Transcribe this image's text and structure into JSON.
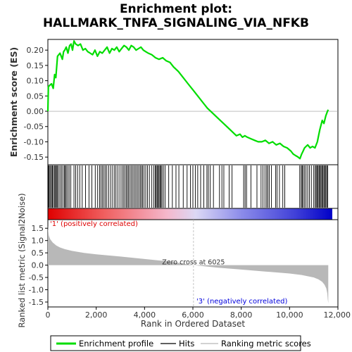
{
  "title_line1": "Enrichment plot:",
  "title_line2": "HALLMARK_TNFA_SIGNALING_VIA_NFKB",
  "colors": {
    "es_line": "#00dd00",
    "hits": "#000000",
    "metric_fill": "#b8b8b8",
    "pos_label": "#dd0000",
    "neg_label": "#0000dd",
    "zero_line": "#b8b8b8"
  },
  "chart_data": [
    {
      "type": "line",
      "name": "enrichment-profile",
      "ylabel": "Enrichment score (ES)",
      "xlim": [
        0,
        12000
      ],
      "ylim": [
        -0.175,
        0.235
      ],
      "yticks": [
        0.2,
        0.15,
        0.1,
        0.05,
        0.0,
        -0.05,
        -0.1,
        -0.15
      ],
      "ytick_labels": [
        "0.20",
        "0.15",
        "0.10",
        "0.05",
        "0.00",
        "-0.05",
        "-0.10",
        "-0.15"
      ],
      "x": [
        0,
        20,
        80,
        150,
        220,
        280,
        330,
        400,
        500,
        600,
        650,
        700,
        760,
        830,
        900,
        960,
        1020,
        1080,
        1150,
        1250,
        1350,
        1450,
        1550,
        1650,
        1750,
        1850,
        1950,
        2050,
        2150,
        2250,
        2350,
        2450,
        2550,
        2650,
        2750,
        2850,
        2950,
        3050,
        3150,
        3250,
        3350,
        3450,
        3550,
        3650,
        3750,
        3850,
        3950,
        4050,
        4150,
        4300,
        4450,
        4600,
        4750,
        4900,
        5050,
        5200,
        5400,
        5600,
        5800,
        6000,
        6200,
        6400,
        6600,
        6800,
        7000,
        7200,
        7400,
        7600,
        7800,
        7950,
        8050,
        8150,
        8250,
        8400,
        8550,
        8700,
        8850,
        9000,
        9150,
        9300,
        9450,
        9600,
        9750,
        9900,
        10050,
        10150,
        10250,
        10350,
        10430,
        10500,
        10560,
        10620,
        10680,
        10750,
        10850,
        10950,
        11050,
        11150,
        11200,
        11250,
        11300,
        11350,
        11420,
        11500,
        11570,
        11600
      ],
      "y": [
        0.0,
        0.08,
        0.085,
        0.09,
        0.075,
        0.12,
        0.11,
        0.18,
        0.19,
        0.17,
        0.195,
        0.2,
        0.21,
        0.19,
        0.215,
        0.22,
        0.2,
        0.23,
        0.22,
        0.215,
        0.22,
        0.2,
        0.205,
        0.195,
        0.19,
        0.185,
        0.2,
        0.18,
        0.195,
        0.19,
        0.2,
        0.21,
        0.19,
        0.205,
        0.2,
        0.21,
        0.195,
        0.205,
        0.215,
        0.21,
        0.2,
        0.215,
        0.21,
        0.2,
        0.205,
        0.21,
        0.2,
        0.195,
        0.19,
        0.185,
        0.175,
        0.17,
        0.175,
        0.165,
        0.16,
        0.145,
        0.13,
        0.11,
        0.09,
        0.07,
        0.05,
        0.03,
        0.01,
        -0.005,
        -0.02,
        -0.035,
        -0.05,
        -0.065,
        -0.08,
        -0.075,
        -0.085,
        -0.08,
        -0.085,
        -0.09,
        -0.095,
        -0.1,
        -0.1,
        -0.095,
        -0.105,
        -0.1,
        -0.11,
        -0.105,
        -0.115,
        -0.12,
        -0.13,
        -0.14,
        -0.145,
        -0.15,
        -0.155,
        -0.14,
        -0.13,
        -0.12,
        -0.115,
        -0.11,
        -0.12,
        -0.115,
        -0.12,
        -0.1,
        -0.08,
        -0.06,
        -0.045,
        -0.03,
        -0.04,
        -0.015,
        0.0,
        0.005
      ]
    },
    {
      "type": "table",
      "name": "hits",
      "xlim": [
        0,
        12000
      ],
      "hit_positions": [
        30,
        60,
        110,
        150,
        190,
        230,
        280,
        320,
        350,
        390,
        440,
        500,
        560,
        620,
        680,
        720,
        760,
        820,
        880,
        950,
        1080,
        1150,
        1230,
        1320,
        1420,
        1560,
        1700,
        1820,
        1960,
        2060,
        2140,
        2200,
        2260,
        2320,
        2380,
        2440,
        2520,
        2600,
        2680,
        2760,
        2820,
        2900,
        2980,
        3060,
        3120,
        3180,
        3240,
        3290,
        3340,
        3400,
        3460,
        3520,
        3580,
        3640,
        3700,
        3760,
        3820,
        3870,
        3920,
        3980,
        4050,
        4120,
        4200,
        4300,
        4380,
        4440,
        4480,
        4520,
        4560,
        4600,
        4640,
        4680,
        4720,
        4780,
        4850,
        5000,
        5150,
        5300,
        5420,
        5600,
        5760,
        5900,
        6000,
        6100,
        6200,
        6320,
        6450,
        6580,
        6640,
        6720,
        6850,
        7100,
        7200,
        7280,
        7500,
        7620,
        8100,
        8160,
        8220,
        8400,
        8650,
        8820,
        8900,
        8980,
        9050,
        9100,
        9160,
        9250,
        9420,
        9480,
        9580,
        9720,
        9800,
        10420,
        10480,
        10520,
        10560,
        10620,
        10680,
        10750,
        10820,
        10900,
        11000,
        11060,
        11100,
        11140,
        11180,
        11220,
        11260,
        11300,
        11340,
        11380,
        11420,
        11460,
        11500,
        11540,
        11580
      ]
    },
    {
      "type": "area",
      "name": "ranked-list-metric",
      "ylabel": "Ranked list metric (Signal2Noise)",
      "xlabel": "Rank in Ordered Dataset",
      "xlim": [
        0,
        12000
      ],
      "ylim": [
        -1.7,
        1.85
      ],
      "xticks": [
        0,
        2000,
        4000,
        6000,
        8000,
        10000,
        12000
      ],
      "xtick_labels": [
        "0",
        "2,000",
        "4,000",
        "6,000",
        "8,000",
        "10,000",
        "12,000"
      ],
      "yticks": [
        1.5,
        1.0,
        0.5,
        0.0,
        -0.5,
        -1.0,
        -1.5
      ],
      "ytick_labels": [
        "1.5",
        "1.0",
        "0.5",
        "0.0",
        "-0.5",
        "-1.0",
        "-1.5"
      ],
      "x": [
        0,
        10,
        40,
        100,
        200,
        350,
        500,
        700,
        1000,
        1500,
        2000,
        3000,
        4000,
        5000,
        6025,
        7000,
        8000,
        9000,
        10000,
        10500,
        11000,
        11200,
        11350,
        11450,
        11520,
        11560,
        11580,
        11600
      ],
      "y": [
        1.62,
        1.45,
        1.2,
        1.05,
        0.92,
        0.8,
        0.72,
        0.65,
        0.58,
        0.5,
        0.44,
        0.35,
        0.25,
        0.15,
        0.0,
        -0.1,
        -0.18,
        -0.26,
        -0.34,
        -0.4,
        -0.5,
        -0.58,
        -0.68,
        -0.8,
        -0.95,
        -1.15,
        -1.4,
        -1.55
      ],
      "zero_cross_label": "Zero cross at 6025",
      "zero_cross_x": 6025,
      "pos_label": "'1' (positively correlated)",
      "neg_label": "'3' (negatively correlated)"
    }
  ],
  "legend": {
    "items": [
      {
        "label": "Enrichment profile",
        "color": "#00dd00"
      },
      {
        "label": "Hits",
        "color": "#000000"
      },
      {
        "label": "Ranking metric scores",
        "color": "#b8b8b8"
      }
    ]
  }
}
